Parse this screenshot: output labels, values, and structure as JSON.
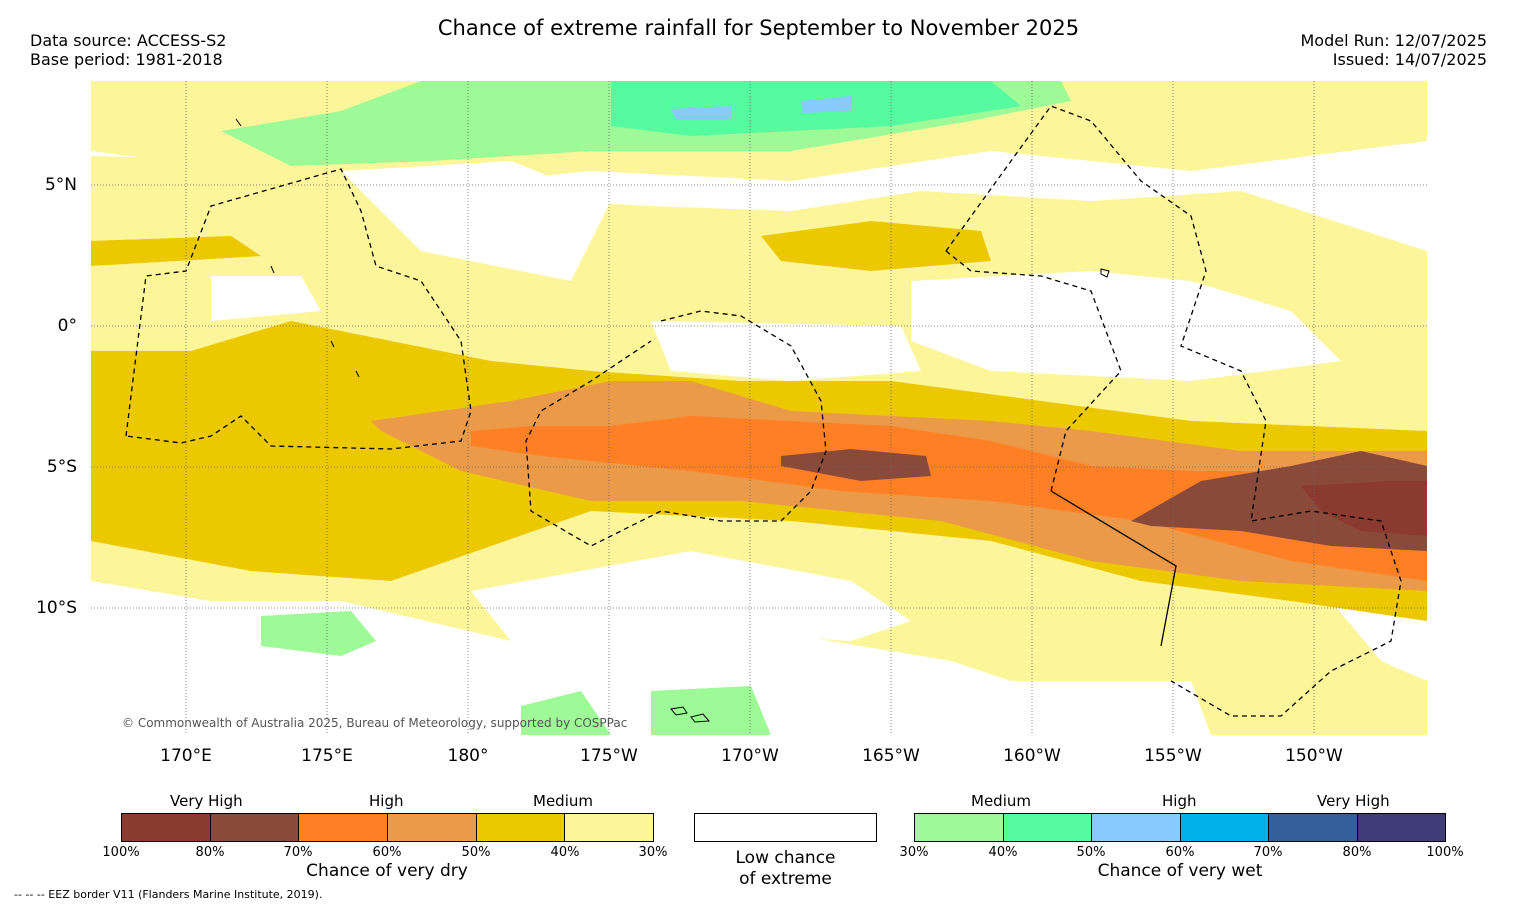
{
  "header": {
    "title": "Chance of extreme rainfall for September to November 2025",
    "data_source": "Data source: ACCESS-S2",
    "base_period": "Base period: 1981-2018",
    "model_run": "Model Run: 12/07/2025",
    "issued": "Issued: 14/07/2025"
  },
  "map": {
    "lat_labels": [
      "5°N",
      "0°",
      "5°S",
      "10°S"
    ],
    "lon_labels": [
      "170°E",
      "175°E",
      "180°",
      "175°W",
      "170°W",
      "165°W",
      "160°W",
      "155°W",
      "150°W"
    ],
    "copyright": "© Commonwealth of Australia 2025, Bureau of Meteorology, supported by COSPPac",
    "colors": {
      "dry_100": "#8b3a30",
      "dry_80": "#8a4a3a",
      "dry_70": "#ff7f24",
      "dry_60": "#ea9a48",
      "dry_50": "#ecc800",
      "dry_40": "#fdf59a",
      "wet_30": "#9dfa96",
      "wet_40": "#55fb9e",
      "wet_50": "#88cafc",
      "wet_60": "#00b1ea",
      "wet_70": "#345f9b",
      "wet_80": "#3f3c78"
    }
  },
  "legend": {
    "dry": {
      "headings": [
        "Very High",
        "High",
        "Medium"
      ],
      "ticks": [
        "100%",
        "80%",
        "70%",
        "60%",
        "50%",
        "40%",
        "30%"
      ],
      "caption": "Chance of very dry",
      "colors": [
        "#8b3a30",
        "#8a4a3a",
        "#ff7f24",
        "#ea9a48",
        "#ecc800",
        "#fdf59a"
      ]
    },
    "neutral": {
      "caption_line1": "Low chance",
      "caption_line2": "of extreme"
    },
    "wet": {
      "headings": [
        "Medium",
        "High",
        "Very High"
      ],
      "ticks": [
        "30%",
        "40%",
        "50%",
        "60%",
        "70%",
        "80%",
        "100%"
      ],
      "caption": "Chance of very wet",
      "colors": [
        "#9dfa96",
        "#55fb9e",
        "#88cafc",
        "#00b1ea",
        "#345f9b",
        "#3f3c78"
      ]
    }
  },
  "footer": {
    "eez_note": "-- -- -- EEZ border V11 (Flanders Marine Institute, 2019)."
  }
}
